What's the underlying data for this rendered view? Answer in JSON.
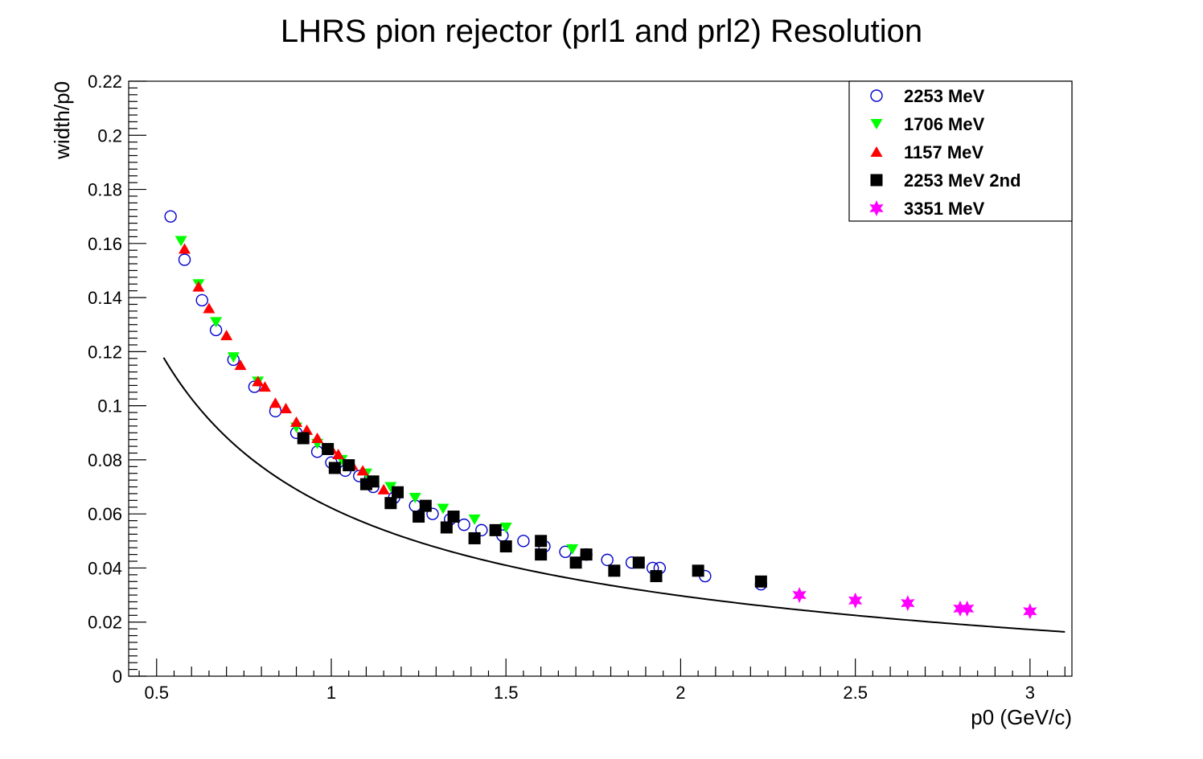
{
  "chart_data": {
    "type": "scatter",
    "title": "LHRS pion rejector (prl1 and prl2) Resolution",
    "xlabel": "p0 (GeV/c)",
    "ylabel": "width/p0",
    "xlim": [
      0.42,
      3.12
    ],
    "ylim": [
      0,
      0.22
    ],
    "x_ticks": [
      0.5,
      1,
      1.5,
      2,
      2.5,
      3
    ],
    "x_tick_labels": [
      "0.5",
      "1",
      "1.5",
      "2",
      "2.5",
      "3"
    ],
    "y_ticks": [
      0,
      0.02,
      0.04,
      0.06,
      0.08,
      0.1,
      0.12,
      0.14,
      0.16,
      0.18,
      0.2,
      0.22
    ],
    "y_tick_labels": [
      "0",
      "0.02",
      "0.04",
      "0.06",
      "0.08",
      "0.1",
      "0.12",
      "0.14",
      "0.16",
      "0.18",
      "0.2",
      "0.22"
    ],
    "grid": false,
    "legend_position": "top-right",
    "series": [
      {
        "name": "2253 MeV",
        "marker": "open-circle",
        "color": "#0000cc",
        "points": [
          [
            0.54,
            0.17
          ],
          [
            0.58,
            0.154
          ],
          [
            0.63,
            0.139
          ],
          [
            0.67,
            0.128
          ],
          [
            0.72,
            0.117
          ],
          [
            0.78,
            0.107
          ],
          [
            0.84,
            0.098
          ],
          [
            0.9,
            0.09
          ],
          [
            0.96,
            0.083
          ],
          [
            1.0,
            0.079
          ],
          [
            1.04,
            0.076
          ],
          [
            1.08,
            0.074
          ],
          [
            1.12,
            0.07
          ],
          [
            1.18,
            0.066
          ],
          [
            1.24,
            0.063
          ],
          [
            1.29,
            0.06
          ],
          [
            1.34,
            0.058
          ],
          [
            1.38,
            0.056
          ],
          [
            1.43,
            0.054
          ],
          [
            1.49,
            0.052
          ],
          [
            1.55,
            0.05
          ],
          [
            1.61,
            0.048
          ],
          [
            1.67,
            0.046
          ],
          [
            1.73,
            0.045
          ],
          [
            1.79,
            0.043
          ],
          [
            1.86,
            0.042
          ],
          [
            1.92,
            0.04
          ],
          [
            1.94,
            0.04
          ],
          [
            2.07,
            0.037
          ],
          [
            2.23,
            0.034
          ]
        ]
      },
      {
        "name": "1706 MeV",
        "marker": "down-triangle",
        "color": "#00ff00",
        "points": [
          [
            0.57,
            0.161
          ],
          [
            0.62,
            0.145
          ],
          [
            0.67,
            0.131
          ],
          [
            0.72,
            0.118
          ],
          [
            0.79,
            0.109
          ],
          [
            0.9,
            0.092
          ],
          [
            0.96,
            0.086
          ],
          [
            1.03,
            0.08
          ],
          [
            1.1,
            0.075
          ],
          [
            1.17,
            0.07
          ],
          [
            1.24,
            0.066
          ],
          [
            1.32,
            0.062
          ],
          [
            1.41,
            0.058
          ],
          [
            1.5,
            0.055
          ],
          [
            1.69,
            0.047
          ]
        ]
      },
      {
        "name": "1157 MeV",
        "marker": "up-triangle",
        "color": "#ff0000",
        "points": [
          [
            0.58,
            0.158
          ],
          [
            0.62,
            0.144
          ],
          [
            0.65,
            0.136
          ],
          [
            0.7,
            0.126
          ],
          [
            0.74,
            0.115
          ],
          [
            0.79,
            0.109
          ],
          [
            0.81,
            0.107
          ],
          [
            0.84,
            0.101
          ],
          [
            0.87,
            0.099
          ],
          [
            0.9,
            0.094
          ],
          [
            0.93,
            0.091
          ],
          [
            0.96,
            0.088
          ],
          [
            1.0,
            0.084
          ],
          [
            1.02,
            0.082
          ],
          [
            1.06,
            0.078
          ],
          [
            1.09,
            0.076
          ],
          [
            1.15,
            0.069
          ]
        ]
      },
      {
        "name": "2253 MeV 2nd",
        "marker": "square",
        "color": "#000000",
        "points": [
          [
            0.92,
            0.088
          ],
          [
            0.99,
            0.084
          ],
          [
            1.01,
            0.077
          ],
          [
            1.05,
            0.078
          ],
          [
            1.1,
            0.071
          ],
          [
            1.12,
            0.072
          ],
          [
            1.17,
            0.064
          ],
          [
            1.19,
            0.068
          ],
          [
            1.25,
            0.059
          ],
          [
            1.27,
            0.063
          ],
          [
            1.33,
            0.055
          ],
          [
            1.35,
            0.059
          ],
          [
            1.41,
            0.051
          ],
          [
            1.47,
            0.054
          ],
          [
            1.5,
            0.048
          ],
          [
            1.6,
            0.05
          ],
          [
            1.6,
            0.045
          ],
          [
            1.7,
            0.042
          ],
          [
            1.73,
            0.045
          ],
          [
            1.81,
            0.039
          ],
          [
            1.88,
            0.042
          ],
          [
            1.93,
            0.037
          ],
          [
            2.05,
            0.039
          ],
          [
            2.23,
            0.035
          ]
        ]
      },
      {
        "name": "3351 MeV",
        "marker": "star",
        "color": "#ff00ff",
        "points": [
          [
            2.34,
            0.03
          ],
          [
            2.5,
            0.028
          ],
          [
            2.65,
            0.027
          ],
          [
            2.8,
            0.025
          ],
          [
            2.82,
            0.025
          ],
          [
            3.0,
            0.024
          ]
        ]
      }
    ],
    "fit_curve": {
      "color": "#000000",
      "x_range": [
        0.52,
        3.1
      ]
    }
  }
}
